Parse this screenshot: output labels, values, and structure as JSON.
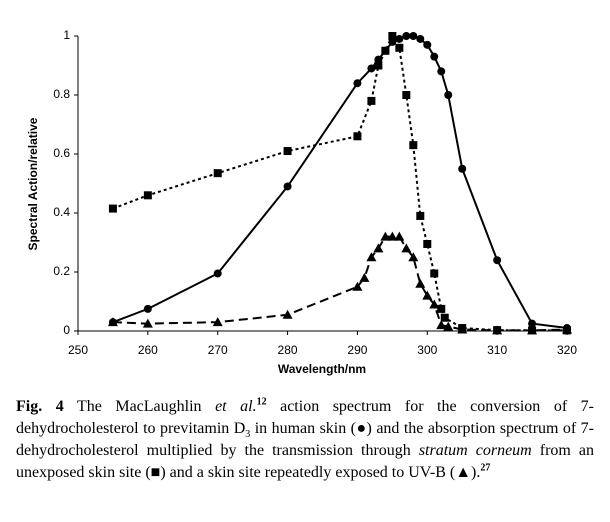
{
  "chart_data": {
    "type": "line",
    "ylabel": "Spectral Action/relative",
    "xlabel": "Wavelength/nm",
    "xlim": [
      250,
      320
    ],
    "xticks": [
      250,
      260,
      270,
      280,
      290,
      300,
      310,
      320
    ],
    "ylim": [
      0,
      1
    ],
    "yticks": [
      0,
      0.2,
      0.4,
      0.6,
      0.8,
      1
    ],
    "series": [
      {
        "color": "#000000",
        "marker": "circle",
        "dash": "solid",
        "x": [
          255,
          260,
          270,
          280,
          290,
          292,
          293,
          294,
          295,
          296,
          297,
          298,
          299,
          300,
          301,
          302,
          303,
          305,
          310,
          315,
          320
        ],
        "values": [
          0.03,
          0.075,
          0.195,
          0.49,
          0.84,
          0.89,
          0.92,
          0.95,
          0.98,
          0.99,
          1,
          1,
          0.99,
          0.97,
          0.93,
          0.88,
          0.8,
          0.55,
          0.24,
          0.025,
          0.01
        ]
      },
      {
        "color": "#000000",
        "marker": "square",
        "dash": "dotted",
        "x": [
          255,
          260,
          270,
          280,
          290,
          292,
          293,
          294,
          295,
          296,
          297,
          298,
          299,
          300,
          301,
          302,
          302.5,
          305,
          310,
          315,
          320
        ],
        "values": [
          0.415,
          0.46,
          0.535,
          0.61,
          0.66,
          0.78,
          0.9,
          0.95,
          1,
          0.96,
          0.8,
          0.63,
          0.39,
          0.295,
          0.195,
          0.075,
          0.045,
          0.01,
          0.003,
          0.002,
          0.002
        ]
      },
      {
        "color": "#000000",
        "marker": "triangle",
        "dash": "dashed",
        "x": [
          255,
          260,
          270,
          280,
          290,
          291,
          292,
          293,
          294,
          295,
          296,
          297,
          298,
          299,
          300,
          301,
          302,
          303,
          305,
          310,
          315,
          320
        ],
        "values": [
          0.03,
          0.025,
          0.03,
          0.055,
          0.15,
          0.18,
          0.25,
          0.28,
          0.32,
          0.32,
          0.32,
          0.28,
          0.25,
          0.16,
          0.12,
          0.09,
          0.02,
          0.015,
          0.005,
          0.002,
          0.002,
          0.005
        ]
      }
    ]
  },
  "caption": [
    "Fig. 4",
    " The MacLaughlin ",
    "et al.",
    "12",
    " action spectrum for the conversion of 7-dehydrocholesterol to previtamin D",
    "3",
    " in human skin (●) and the absorption spectrum of 7-dehydrocholesterol multiplied by the transmission through ",
    "stratum corneum",
    " from an unexposed skin site (■) and a skin site repeatedly exposed to UV-B (▲).",
    "27"
  ]
}
